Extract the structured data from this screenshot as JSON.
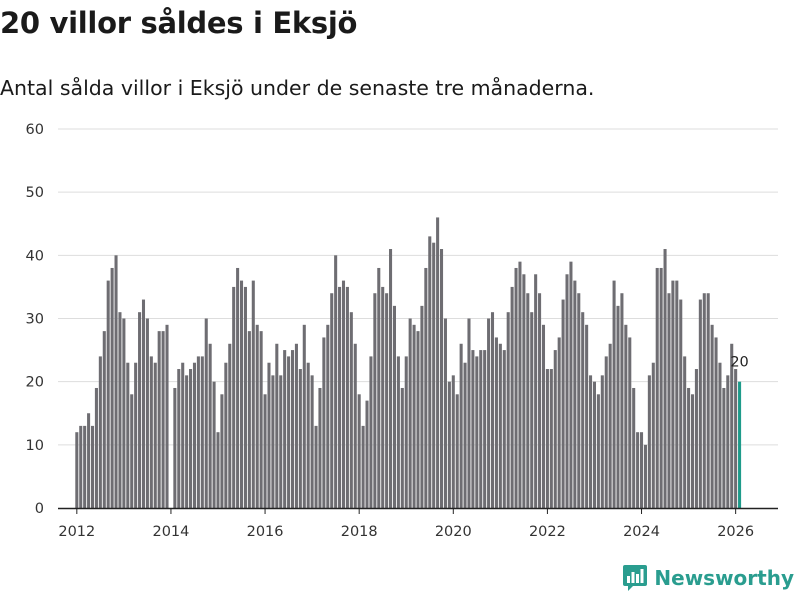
{
  "colors": {
    "bar": "#6e6d72",
    "highlight": "#1e9b8a",
    "grid": "#dddddd",
    "axis": "#222222",
    "brand": "#2a9d8f"
  },
  "brand": {
    "name": "Newsworthy",
    "icon": "newsworthy-logo-icon"
  },
  "chart_data": {
    "type": "bar",
    "title": "20 villor såldes i Eksjö",
    "subtitle": "Antal sålda villor i Eksjö under de senaste tre månaderna.",
    "xlabel": "",
    "ylabel": "",
    "ylim": [
      0,
      60
    ],
    "yticks": [
      "0",
      "10",
      "20",
      "30",
      "40",
      "50",
      "60"
    ],
    "xlim": [
      2011.6,
      2026.9
    ],
    "xticks": [
      {
        "value": 2012,
        "label": "2012"
      },
      {
        "value": 2014,
        "label": "2014"
      },
      {
        "value": 2016,
        "label": "2016"
      },
      {
        "value": 2018,
        "label": "2018"
      },
      {
        "value": 2020,
        "label": "2020"
      },
      {
        "value": 2022,
        "label": "2022"
      },
      {
        "value": 2024,
        "label": "2024"
      },
      {
        "value": 2026,
        "label": "2026"
      }
    ],
    "start": "2012-01",
    "values": [
      12,
      13,
      13,
      15,
      13,
      19,
      24,
      28,
      36,
      38,
      40,
      31,
      30,
      23,
      18,
      23,
      31,
      33,
      30,
      24,
      23,
      28,
      28,
      29,
      0,
      19,
      22,
      23,
      21,
      22,
      23,
      24,
      24,
      30,
      26,
      20,
      12,
      18,
      23,
      26,
      35,
      38,
      36,
      35,
      28,
      36,
      29,
      28,
      18,
      23,
      21,
      26,
      21,
      25,
      24,
      25,
      26,
      22,
      29,
      23,
      21,
      13,
      19,
      27,
      29,
      34,
      40,
      35,
      36,
      35,
      31,
      26,
      18,
      13,
      17,
      24,
      34,
      38,
      35,
      34,
      41,
      32,
      24,
      19,
      24,
      30,
      29,
      28,
      32,
      38,
      43,
      42,
      46,
      41,
      30,
      20,
      21,
      18,
      26,
      23,
      30,
      25,
      24,
      25,
      25,
      30,
      31,
      27,
      26,
      25,
      31,
      35,
      38,
      39,
      37,
      34,
      31,
      37,
      34,
      29,
      22,
      22,
      25,
      27,
      33,
      37,
      39,
      36,
      34,
      31,
      29,
      21,
      20,
      18,
      21,
      24,
      26,
      36,
      32,
      34,
      29,
      27,
      19,
      12,
      12,
      10,
      21,
      23,
      38,
      38,
      41,
      34,
      36,
      36,
      33,
      24,
      19,
      18,
      22,
      33,
      34,
      34,
      29,
      27,
      23,
      19,
      21,
      26,
      22,
      20
    ],
    "highlight_label": "20"
  }
}
